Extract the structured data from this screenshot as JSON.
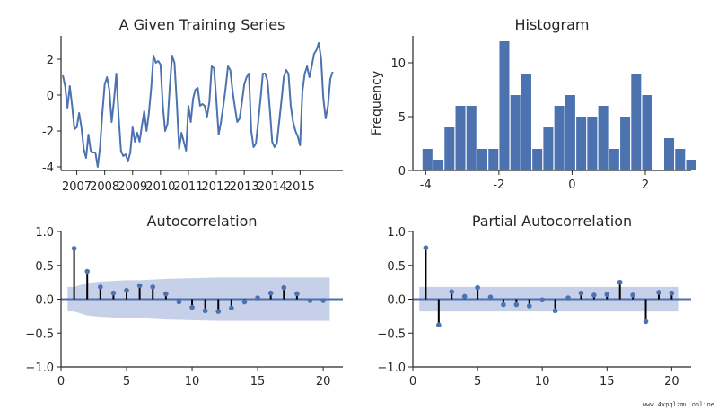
{
  "colors": {
    "line": "#4c72b0",
    "bar": "#4c72b0",
    "stem": "#000000",
    "ci": "#c6d0e8",
    "zero": "#4c72b0",
    "axis": "#262626"
  },
  "watermark": "www.4xpqlzmu.online",
  "chart_data": [
    {
      "id": "series",
      "type": "line",
      "title": "A Given Training Series",
      "xlabel": "",
      "ylabel": "",
      "xtick_labels": [
        "2007",
        "2008",
        "2009",
        "2010",
        "2011",
        "2012",
        "2013",
        "2014",
        "2015"
      ],
      "yticks": [
        -4,
        -2,
        0,
        2
      ],
      "xlim": [
        0,
        120
      ],
      "ylim": [
        -4.2,
        3.3
      ],
      "x_start": 2006.5,
      "step": 0.0833,
      "values": [
        1.1,
        0.5,
        -0.7,
        0.5,
        -0.6,
        -1.9,
        -1.8,
        -1.0,
        -1.8,
        -3.0,
        -3.5,
        -2.2,
        -3.1,
        -3.2,
        -3.2,
        -4.0,
        -2.9,
        -1.0,
        0.6,
        1.0,
        0.3,
        -1.5,
        -0.3,
        1.2,
        -1.2,
        -3.1,
        -3.4,
        -3.3,
        -3.7,
        -3.2,
        -1.8,
        -2.6,
        -2.1,
        -2.6,
        -1.7,
        -0.9,
        -2.0,
        -1.0,
        0.4,
        2.2,
        1.8,
        1.9,
        1.7,
        -0.6,
        -2.0,
        -1.6,
        0.5,
        2.2,
        1.8,
        -0.4,
        -3.0,
        -2.1,
        -2.6,
        -3.1,
        -0.6,
        -1.5,
        -0.2,
        0.3,
        0.4,
        -0.6,
        -0.5,
        -0.6,
        -1.2,
        -0.4,
        1.6,
        1.5,
        -0.3,
        -2.2,
        -1.5,
        -0.6,
        0.4,
        1.6,
        1.4,
        0.2,
        -0.7,
        -1.5,
        -1.3,
        -0.4,
        0.6,
        1.0,
        1.2,
        -2.0,
        -2.9,
        -2.7,
        -1.5,
        -0.2,
        1.2,
        1.2,
        0.8,
        -0.8,
        -2.6,
        -2.9,
        -2.7,
        -1.5,
        -0.3,
        1.0,
        1.4,
        1.2,
        -0.6,
        -1.5,
        -2.0,
        -2.3,
        -2.8,
        0.2,
        1.2,
        1.6,
        1.0,
        1.6,
        2.3,
        2.5,
        2.9,
        2.1,
        -0.2,
        -1.3,
        -0.6,
        0.9,
        1.3
      ]
    },
    {
      "id": "hist",
      "type": "bar",
      "title": "Histogram",
      "xlabel": "",
      "ylabel": "Frequency",
      "xticks": [
        -4,
        -2,
        0,
        2
      ],
      "yticks": [
        0,
        5,
        10
      ],
      "xlim": [
        -4.35,
        3.25
      ],
      "ylim": [
        0,
        12.5
      ],
      "bin_start": -4.1,
      "bin_width": 0.3,
      "values": [
        2,
        1,
        4,
        6,
        6,
        2,
        2,
        12,
        7,
        9,
        2,
        4,
        6,
        7,
        5,
        5,
        6,
        2,
        5,
        9,
        7,
        0,
        3,
        2,
        1
      ]
    },
    {
      "id": "acf",
      "type": "scatter",
      "title": "Autocorrelation",
      "xlabel": "",
      "ylabel": "",
      "xticks": [
        0,
        5,
        10,
        15,
        20
      ],
      "yticks": [
        -1.0,
        -0.5,
        0.0,
        0.5,
        1.0
      ],
      "ytick_labels": [
        "−1.0",
        "−0.5",
        "0.0",
        "0.5",
        "1.0"
      ],
      "xlim": [
        0,
        21.5
      ],
      "ylim": [
        -1.0,
        1.0
      ],
      "lags": [
        1,
        2,
        3,
        4,
        5,
        6,
        7,
        8,
        9,
        10,
        11,
        12,
        13,
        14,
        15,
        16,
        17,
        18,
        19,
        20
      ],
      "values": [
        0.75,
        0.41,
        0.18,
        0.09,
        0.13,
        0.2,
        0.18,
        0.08,
        -0.04,
        -0.12,
        -0.17,
        -0.18,
        -0.13,
        -0.04,
        0.02,
        0.09,
        0.17,
        0.08,
        -0.02,
        -0.02
      ],
      "conf_band": [
        [
          0.5,
          0.18
        ],
        [
          1,
          0.18
        ],
        [
          2,
          0.24
        ],
        [
          3,
          0.26
        ],
        [
          4,
          0.27
        ],
        [
          5,
          0.28
        ],
        [
          6,
          0.28
        ],
        [
          7,
          0.29
        ],
        [
          8,
          0.3
        ],
        [
          10,
          0.31
        ],
        [
          12,
          0.32
        ],
        [
          15,
          0.32
        ],
        [
          18,
          0.32
        ],
        [
          20.5,
          0.32
        ]
      ]
    },
    {
      "id": "pacf",
      "type": "scatter",
      "title": "Partial Autocorrelation",
      "xlabel": "",
      "ylabel": "",
      "xticks": [
        0,
        5,
        10,
        15,
        20
      ],
      "yticks": [
        -1.0,
        -0.5,
        0.0,
        0.5,
        1.0
      ],
      "ytick_labels": [
        "−1.0",
        "−0.5",
        "0.0",
        "0.5",
        "1.0"
      ],
      "xlim": [
        0,
        21.5
      ],
      "ylim": [
        -1.0,
        1.0
      ],
      "lags": [
        1,
        2,
        3,
        4,
        5,
        6,
        7,
        8,
        9,
        10,
        11,
        12,
        13,
        14,
        15,
        16,
        17,
        18,
        19,
        20
      ],
      "values": [
        0.76,
        -0.38,
        0.11,
        0.04,
        0.17,
        0.03,
        -0.08,
        -0.08,
        -0.1,
        -0.01,
        -0.17,
        0.02,
        0.09,
        0.06,
        0.07,
        0.25,
        0.06,
        -0.33,
        0.1,
        0.09
      ],
      "conf_band": [
        [
          0.5,
          0.18
        ],
        [
          20.5,
          0.18
        ]
      ]
    }
  ]
}
